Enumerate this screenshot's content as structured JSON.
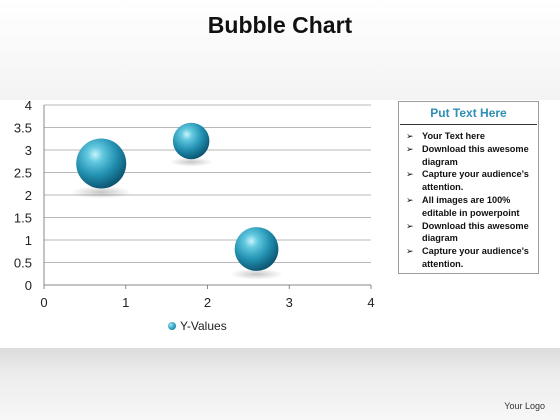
{
  "title": "Bubble Chart",
  "chart_data": {
    "type": "scatter",
    "title": "",
    "xlabel": "",
    "ylabel": "",
    "xlim": [
      0,
      4
    ],
    "ylim": [
      0,
      4
    ],
    "x_ticks": [
      "0",
      "1",
      "2",
      "3",
      "4"
    ],
    "y_ticks": [
      "0",
      "0.5",
      "1",
      "1.5",
      "2",
      "2.5",
      "3",
      "3.5",
      "4"
    ],
    "grid": "horizontal",
    "legend_position": "bottom",
    "series": [
      {
        "name": "Y-Values",
        "color": "#2aa0c0",
        "points": [
          {
            "x": 0.7,
            "y": 2.7,
            "size": 3
          },
          {
            "x": 1.8,
            "y": 3.2,
            "size": 1.6
          },
          {
            "x": 2.6,
            "y": 0.8,
            "size": 2.3
          }
        ]
      }
    ]
  },
  "panel": {
    "heading": "Put Text Here",
    "bullet_glyph": "➢",
    "items": [
      "Your Text here",
      "Download this awesome diagram",
      "Capture your audience’s attention.",
      "All images are 100% editable in powerpoint",
      "Download this awesome diagram",
      "Capture your audience’s attention."
    ]
  },
  "footer": {
    "logo_text": "Your Logo"
  }
}
